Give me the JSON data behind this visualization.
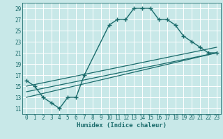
{
  "xlabel": "Humidex (Indice chaleur)",
  "bg_color": "#c8e8e8",
  "line_color": "#1a6b6b",
  "grid_color": "#ffffff",
  "xlim": [
    -0.5,
    23.5
  ],
  "ylim": [
    10.0,
    30.0
  ],
  "xticks": [
    0,
    1,
    2,
    3,
    4,
    5,
    6,
    7,
    8,
    9,
    10,
    11,
    12,
    13,
    14,
    15,
    16,
    17,
    18,
    19,
    20,
    21,
    22,
    23
  ],
  "yticks": [
    11,
    13,
    15,
    17,
    19,
    21,
    23,
    25,
    27,
    29
  ],
  "curve1_x": [
    0,
    1,
    2,
    3,
    4,
    5,
    6,
    7,
    10,
    11,
    12,
    13,
    14,
    15,
    16,
    17,
    18,
    19,
    20,
    21,
    22,
    23
  ],
  "curve1_y": [
    16,
    15,
    13,
    12,
    11,
    13,
    13,
    17,
    26,
    27,
    27,
    29,
    29,
    29,
    27,
    27,
    26,
    24,
    23,
    22,
    21,
    21
  ],
  "line2_x": [
    0,
    23
  ],
  "line2_y": [
    15,
    22
  ],
  "line3_x": [
    0,
    23
  ],
  "line3_y": [
    14,
    21
  ],
  "line4_x": [
    0,
    23
  ],
  "line4_y": [
    13,
    21
  ]
}
